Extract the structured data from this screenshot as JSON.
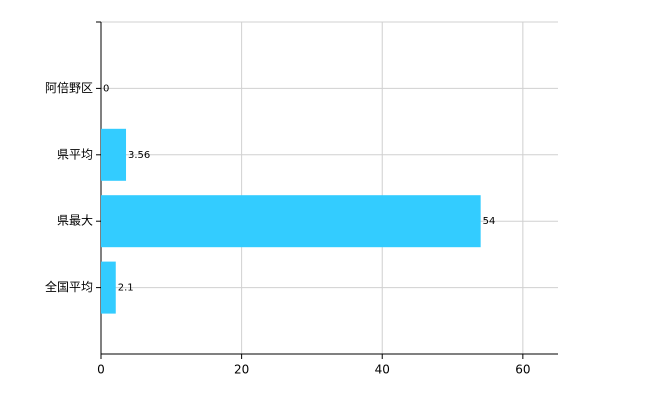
{
  "chart_data": {
    "type": "bar",
    "orientation": "horizontal",
    "categories": [
      "阿倍野区",
      "県平均",
      "県最大",
      "全国平均"
    ],
    "values": [
      0,
      3.56,
      54,
      2.1
    ],
    "color": "#33ccff",
    "xlim": [
      0,
      65
    ],
    "xticks": [
      0,
      20,
      40,
      60
    ],
    "grid": true
  }
}
